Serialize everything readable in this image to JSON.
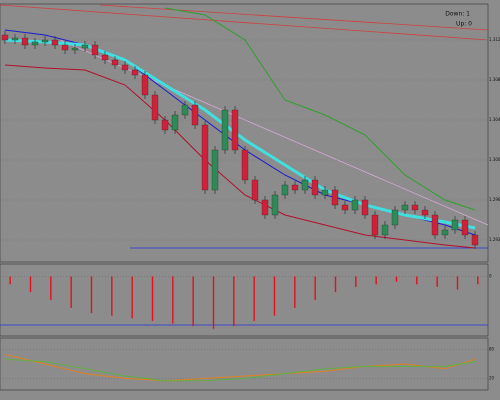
{
  "chart_data": [
    {
      "type": "candlestick",
      "annotations": [
        {
          "text": "Down: 1",
          "color": "#e0102a"
        },
        {
          "text": "Up: 0",
          "color": "#2233dd"
        }
      ],
      "ylim": [
        1.29,
        1.3155
      ],
      "yticks": [
        {
          "value": 1.292,
          "label": "1.2920"
        },
        {
          "value": 1.296,
          "label": "1.2960"
        },
        {
          "value": 1.3,
          "label": "1.3000"
        },
        {
          "value": 1.304,
          "label": "1.3040"
        },
        {
          "value": 1.308,
          "label": "1.3080"
        },
        {
          "value": 1.312,
          "label": "1.3120"
        }
      ],
      "grid": true,
      "up_color": "#2e8b57",
      "down_color": "#d0213a",
      "open": [
        1.3125,
        1.312,
        1.3122,
        1.3115,
        1.3118,
        1.312,
        1.3115,
        1.311,
        1.3112,
        1.3115,
        1.3105,
        1.31,
        1.3095,
        1.309,
        1.3085,
        1.3065,
        1.304,
        1.303,
        1.3045,
        1.3055,
        1.3035,
        1.297,
        1.301,
        1.305,
        1.301,
        1.298,
        1.296,
        1.2945,
        1.2965,
        1.2975,
        1.297,
        1.298,
        1.2965,
        1.297,
        1.2955,
        1.295,
        1.296,
        1.2945,
        1.2925,
        1.2935,
        1.295,
        1.2955,
        1.295,
        1.2945,
        1.2925,
        1.293,
        1.294,
        1.2925
      ],
      "high": [
        1.3129,
        1.3126,
        1.3126,
        1.3122,
        1.3124,
        1.3124,
        1.3119,
        1.3116,
        1.3119,
        1.3119,
        1.3109,
        1.3104,
        1.3099,
        1.3094,
        1.3089,
        1.3069,
        1.3044,
        1.3049,
        1.3059,
        1.3059,
        1.3039,
        1.3014,
        1.3054,
        1.3054,
        1.3014,
        1.2984,
        1.2964,
        1.2969,
        1.2979,
        1.2979,
        1.2984,
        1.2984,
        1.2974,
        1.2974,
        1.2959,
        1.2964,
        1.2964,
        1.2949,
        1.2939,
        1.2954,
        1.2959,
        1.2959,
        1.2954,
        1.2949,
        1.2934,
        1.2944,
        1.2944,
        1.2929
      ],
      "low": [
        1.3116,
        1.3116,
        1.3111,
        1.3111,
        1.3114,
        1.3111,
        1.3106,
        1.3106,
        1.3108,
        1.3101,
        1.3096,
        1.3091,
        1.3086,
        1.3081,
        1.3061,
        1.3036,
        1.3026,
        1.3026,
        1.3041,
        1.3031,
        1.2966,
        1.2966,
        1.3006,
        1.3006,
        1.2976,
        1.2956,
        1.2941,
        1.2941,
        1.2961,
        1.2966,
        1.2966,
        1.2961,
        1.2961,
        1.2951,
        1.2946,
        1.2946,
        1.2941,
        1.2921,
        1.2921,
        1.2931,
        1.2946,
        1.2946,
        1.2941,
        1.2921,
        1.2921,
        1.2926,
        1.2921,
        1.2911
      ],
      "close": [
        1.312,
        1.3122,
        1.3115,
        1.3118,
        1.312,
        1.3115,
        1.311,
        1.3112,
        1.3115,
        1.3105,
        1.31,
        1.3095,
        1.309,
        1.3085,
        1.3065,
        1.304,
        1.303,
        1.3045,
        1.3055,
        1.3035,
        1.297,
        1.301,
        1.305,
        1.301,
        1.298,
        1.296,
        1.2945,
        1.2965,
        1.2975,
        1.297,
        1.298,
        1.2965,
        1.297,
        1.2955,
        1.295,
        1.296,
        1.2945,
        1.2925,
        1.2935,
        1.295,
        1.2955,
        1.295,
        1.2945,
        1.2925,
        1.293,
        1.294,
        1.2925,
        1.2915
      ],
      "series": [
        {
          "color": "#1a1ad0",
          "x": [
            0,
            4,
            8,
            12,
            16,
            20,
            24,
            28,
            32,
            36,
            40,
            44,
            47
          ],
          "values": [
            1.313,
            1.3125,
            1.3115,
            1.31,
            1.307,
            1.304,
            1.301,
            1.2985,
            1.2965,
            1.2955,
            1.2945,
            1.2935,
            1.2925
          ]
        },
        {
          "color": "#40e0e0",
          "x": [
            0,
            4,
            8,
            12,
            16,
            20,
            24,
            28,
            32,
            36,
            40,
            44,
            47
          ],
          "values": [
            1.312,
            1.3118,
            1.3115,
            1.31,
            1.3075,
            1.305,
            1.302,
            1.2995,
            1.297,
            1.2955,
            1.2945,
            1.2938,
            1.2932
          ]
        },
        {
          "color": "#b0102a",
          "x": [
            0,
            4,
            8,
            12,
            16,
            20,
            24,
            28,
            32,
            36,
            40,
            44,
            47
          ],
          "values": [
            1.3095,
            1.3092,
            1.309,
            1.3075,
            1.304,
            1.3,
            1.2965,
            1.2945,
            1.2935,
            1.2925,
            1.292,
            1.2915,
            1.2912
          ]
        },
        {
          "color": "#2ea02e",
          "x": [
            0,
            4,
            8,
            12,
            16,
            20,
            24,
            28,
            32,
            36,
            40,
            44,
            47
          ],
          "values": [
            null,
            null,
            null,
            null,
            1.3152,
            1.3145,
            1.312,
            1.306,
            1.3045,
            1.3025,
            1.2985,
            1.296,
            1.295
          ]
        }
      ]
    },
    {
      "type": "bar",
      "color": "#e01020",
      "categories": [
        null,
        null,
        null,
        null,
        null,
        null,
        null,
        null,
        null,
        null,
        null,
        null,
        null,
        null,
        null,
        null,
        null,
        null,
        null,
        null,
        null,
        null,
        null,
        null
      ],
      "values": [
        -15,
        -30,
        -45,
        -60,
        -70,
        -75,
        -80,
        -85,
        -90,
        -95,
        -100,
        -95,
        -85,
        -75,
        -60,
        -45,
        -30,
        -20,
        -15,
        -10,
        -15,
        -20,
        -25,
        -15
      ],
      "ylim": [
        -110,
        20
      ],
      "yticks": [
        0
      ],
      "grid": true
    },
    {
      "type": "line",
      "ylim": [
        0,
        100
      ],
      "yticks": [
        20,
        80
      ],
      "grid": true,
      "series": [
        {
          "color": "#e08020",
          "x": [
            0,
            4,
            8,
            12,
            16,
            20,
            24,
            28,
            32,
            36,
            40,
            44,
            47
          ],
          "values": [
            70,
            50,
            30,
            20,
            15,
            20,
            25,
            30,
            35,
            45,
            50,
            40,
            60
          ]
        },
        {
          "color": "#60b040",
          "x": [
            0,
            4,
            8,
            12,
            16,
            20,
            24,
            28,
            32,
            36,
            40,
            44,
            47
          ],
          "values": [
            60,
            55,
            40,
            25,
            15,
            15,
            20,
            30,
            40,
            45,
            45,
            45,
            55
          ]
        }
      ]
    }
  ]
}
